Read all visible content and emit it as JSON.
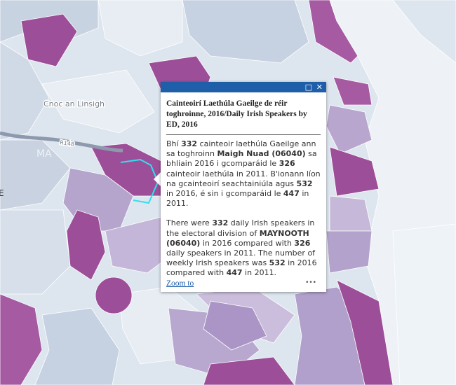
{
  "map": {
    "labels": [
      "Cnoc an Linsigh",
      "R148",
      "MA",
      "E"
    ]
  },
  "popup": {
    "title": "Cainteoirí Laethúla Gaeilge de réir toghroinne, 2016/Daily Irish Speakers by ED, 2016",
    "paragraphs": [
      [
        {
          "text": "Bhí "
        },
        {
          "text": "332",
          "bold": true
        },
        {
          "text": " cainteoir laethúla Gaeilge ann sa toghroinn "
        },
        {
          "text": "Maigh Nuad (06040)",
          "bold": true
        },
        {
          "text": " sa bhliain 2016 i gcomparáid le "
        },
        {
          "text": "326",
          "bold": true
        },
        {
          "text": " cainteoir laethúla in 2011. B'ionann líon na gcainteoirí seachtainiúla agus "
        },
        {
          "text": "532",
          "bold": true
        },
        {
          "text": " in 2016, é sin i gcomparáid le "
        },
        {
          "text": "447",
          "bold": true
        },
        {
          "text": " in 2011."
        }
      ],
      [
        {
          "text": "There were "
        },
        {
          "text": "332",
          "bold": true
        },
        {
          "text": " daily Irish speakers in the electoral division of "
        },
        {
          "text": "MAYNOOTH (06040)",
          "bold": true
        },
        {
          "text": " in 2016 compared with "
        },
        {
          "text": "326",
          "bold": true
        },
        {
          "text": " daily speakers in 2011. The number of weekly Irish speakers was "
        },
        {
          "text": "532",
          "bold": true
        },
        {
          "text": " in 2016 compared with "
        },
        {
          "text": "447",
          "bold": true
        },
        {
          "text": " in 2011."
        }
      ]
    ],
    "zoom": "Zoom to",
    "more": "•••"
  }
}
